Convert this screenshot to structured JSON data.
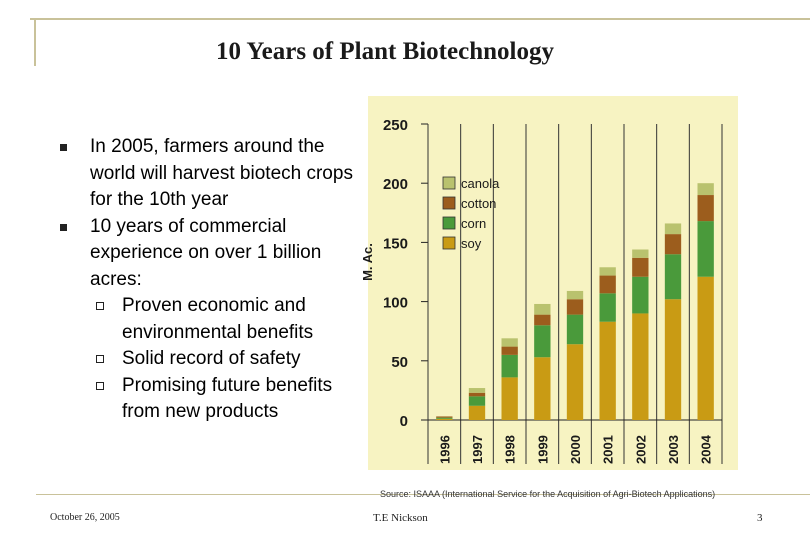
{
  "slide": {
    "title": "10 Years of Plant Biotechnology",
    "bullets": [
      "In 2005, farmers around the world will harvest biotech crops for the 10th year",
      "10 years of commercial experience on over 1 billion acres:"
    ],
    "sub_bullets": [
      "Proven economic and environmental benefits",
      "Solid record of safety",
      "Promising future benefits from new products"
    ]
  },
  "footer": {
    "date": "October 26, 2005",
    "author": "T.E Nickson",
    "page": "3",
    "source": "Source: ISAAA (International Service for the Acquisition of Agri-Biotech Applications)"
  },
  "colors": {
    "canola": "#b9c26e",
    "cotton": "#9c5d1d",
    "corn": "#4a9a3b",
    "soy": "#c99b14",
    "chart_bg": "#f7f3c2"
  },
  "chart_data": {
    "type": "bar",
    "stacked": true,
    "title": "",
    "xlabel": "",
    "ylabel": "M. Ac.",
    "ylim": [
      0,
      250
    ],
    "yticks": [
      0,
      50,
      100,
      150,
      200,
      250
    ],
    "grid": true,
    "legend_position": "top-left",
    "categories": [
      "1996",
      "1997",
      "1998",
      "1999",
      "2000",
      "2001",
      "2002",
      "2003",
      "2004"
    ],
    "series": [
      {
        "name": "soy",
        "values": [
          1,
          12,
          36,
          53,
          64,
          83,
          90,
          102,
          121
        ]
      },
      {
        "name": "corn",
        "values": [
          1,
          8,
          19,
          27,
          25,
          24,
          31,
          38,
          47
        ]
      },
      {
        "name": "cotton",
        "values": [
          1,
          3,
          7,
          9,
          13,
          15,
          16,
          17,
          22
        ]
      },
      {
        "name": "canola",
        "values": [
          0,
          4,
          7,
          9,
          7,
          7,
          7,
          9,
          10
        ]
      }
    ]
  }
}
